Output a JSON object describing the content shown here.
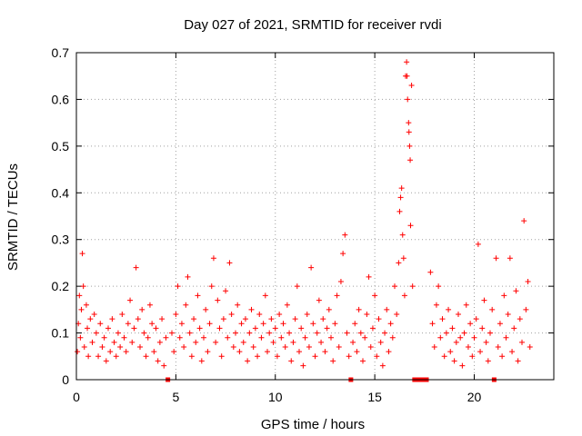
{
  "chart_data": {
    "type": "scatter",
    "title": "Day 027 of 2021, SRMTID for receiver rvdi",
    "xlabel": "GPS time / hours",
    "ylabel": "SRMTID / TECUs",
    "xlim": [
      0,
      24
    ],
    "ylim": [
      0,
      0.7
    ],
    "x_ticks": [
      0,
      5,
      10,
      15,
      20
    ],
    "y_ticks": [
      0,
      0.1,
      0.2,
      0.3,
      0.4,
      0.5,
      0.6,
      0.7
    ],
    "x_tick_labels": [
      "0",
      "5",
      "10",
      "15",
      "20"
    ],
    "y_tick_labels": [
      "0",
      "0.1",
      "0.2",
      "0.3",
      "0.4",
      "0.5",
      "0.6",
      "0.7"
    ],
    "grid": true,
    "marker": "plus",
    "marker_color": "#ff0000",
    "series": [
      {
        "name": "SRMTID",
        "points": [
          [
            0.05,
            0.06
          ],
          [
            0.1,
            0.12
          ],
          [
            0.15,
            0.18
          ],
          [
            0.2,
            0.09
          ],
          [
            0.25,
            0.15
          ],
          [
            0.3,
            0.27
          ],
          [
            0.35,
            0.2
          ],
          [
            0.4,
            0.07
          ],
          [
            0.5,
            0.16
          ],
          [
            0.55,
            0.11
          ],
          [
            0.6,
            0.05
          ],
          [
            0.7,
            0.13
          ],
          [
            0.8,
            0.08
          ],
          [
            0.9,
            0.14
          ],
          [
            1.0,
            0.1
          ],
          [
            1.1,
            0.05
          ],
          [
            1.2,
            0.12
          ],
          [
            1.3,
            0.07
          ],
          [
            1.4,
            0.09
          ],
          [
            1.5,
            0.04
          ],
          [
            1.6,
            0.11
          ],
          [
            1.7,
            0.06
          ],
          [
            1.8,
            0.13
          ],
          [
            1.9,
            0.08
          ],
          [
            2.0,
            0.05
          ],
          [
            2.1,
            0.1
          ],
          [
            2.2,
            0.07
          ],
          [
            2.3,
            0.14
          ],
          [
            2.4,
            0.09
          ],
          [
            2.5,
            0.06
          ],
          [
            2.6,
            0.12
          ],
          [
            2.7,
            0.17
          ],
          [
            2.8,
            0.08
          ],
          [
            2.9,
            0.11
          ],
          [
            3.0,
            0.24
          ],
          [
            3.1,
            0.13
          ],
          [
            3.2,
            0.07
          ],
          [
            3.3,
            0.15
          ],
          [
            3.4,
            0.1
          ],
          [
            3.5,
            0.05
          ],
          [
            3.6,
            0.09
          ],
          [
            3.7,
            0.16
          ],
          [
            3.8,
            0.12
          ],
          [
            3.9,
            0.06
          ],
          [
            4.0,
            0.11
          ],
          [
            4.1,
            0.04
          ],
          [
            4.2,
            0.08
          ],
          [
            4.3,
            0.13
          ],
          [
            4.4,
            0.03
          ],
          [
            4.5,
            0.09
          ],
          [
            4.6,
            0.0
          ],
          [
            4.8,
            0.1
          ],
          [
            4.9,
            0.06
          ],
          [
            5.0,
            0.14
          ],
          [
            5.1,
            0.2
          ],
          [
            5.2,
            0.09
          ],
          [
            5.3,
            0.12
          ],
          [
            5.4,
            0.07
          ],
          [
            5.5,
            0.16
          ],
          [
            5.6,
            0.22
          ],
          [
            5.7,
            0.1
          ],
          [
            5.8,
            0.05
          ],
          [
            5.9,
            0.13
          ],
          [
            6.0,
            0.08
          ],
          [
            6.1,
            0.18
          ],
          [
            6.2,
            0.11
          ],
          [
            6.3,
            0.04
          ],
          [
            6.4,
            0.09
          ],
          [
            6.5,
            0.15
          ],
          [
            6.6,
            0.06
          ],
          [
            6.7,
            0.12
          ],
          [
            6.8,
            0.2
          ],
          [
            6.9,
            0.26
          ],
          [
            7.0,
            0.08
          ],
          [
            7.1,
            0.17
          ],
          [
            7.2,
            0.11
          ],
          [
            7.3,
            0.05
          ],
          [
            7.4,
            0.13
          ],
          [
            7.5,
            0.19
          ],
          [
            7.6,
            0.09
          ],
          [
            7.7,
            0.25
          ],
          [
            7.8,
            0.14
          ],
          [
            7.9,
            0.07
          ],
          [
            8.0,
            0.1
          ],
          [
            8.1,
            0.16
          ],
          [
            8.2,
            0.06
          ],
          [
            8.3,
            0.12
          ],
          [
            8.4,
            0.08
          ],
          [
            8.5,
            0.13
          ],
          [
            8.6,
            0.04
          ],
          [
            8.7,
            0.1
          ],
          [
            8.8,
            0.15
          ],
          [
            8.9,
            0.07
          ],
          [
            9.0,
            0.11
          ],
          [
            9.1,
            0.05
          ],
          [
            9.2,
            0.14
          ],
          [
            9.3,
            0.09
          ],
          [
            9.4,
            0.12
          ],
          [
            9.5,
            0.18
          ],
          [
            9.6,
            0.06
          ],
          [
            9.7,
            0.1
          ],
          [
            9.8,
            0.13
          ],
          [
            9.9,
            0.08
          ],
          [
            10.0,
            0.11
          ],
          [
            10.1,
            0.05
          ],
          [
            10.2,
            0.14
          ],
          [
            10.3,
            0.09
          ],
          [
            10.4,
            0.12
          ],
          [
            10.5,
            0.07
          ],
          [
            10.6,
            0.16
          ],
          [
            10.7,
            0.1
          ],
          [
            10.8,
            0.04
          ],
          [
            10.9,
            0.08
          ],
          [
            11.0,
            0.13
          ],
          [
            11.1,
            0.2
          ],
          [
            11.2,
            0.06
          ],
          [
            11.3,
            0.11
          ],
          [
            11.4,
            0.03
          ],
          [
            11.5,
            0.09
          ],
          [
            11.6,
            0.14
          ],
          [
            11.7,
            0.07
          ],
          [
            11.8,
            0.24
          ],
          [
            11.9,
            0.12
          ],
          [
            12.0,
            0.05
          ],
          [
            12.1,
            0.1
          ],
          [
            12.2,
            0.17
          ],
          [
            12.3,
            0.08
          ],
          [
            12.4,
            0.13
          ],
          [
            12.5,
            0.06
          ],
          [
            12.6,
            0.11
          ],
          [
            12.7,
            0.15
          ],
          [
            12.8,
            0.09
          ],
          [
            12.9,
            0.04
          ],
          [
            13.0,
            0.12
          ],
          [
            13.1,
            0.18
          ],
          [
            13.2,
            0.07
          ],
          [
            13.3,
            0.21
          ],
          [
            13.4,
            0.27
          ],
          [
            13.5,
            0.31
          ],
          [
            13.6,
            0.1
          ],
          [
            13.7,
            0.05
          ],
          [
            13.8,
            0.0
          ],
          [
            13.9,
            0.08
          ],
          [
            14.0,
            0.12
          ],
          [
            14.1,
            0.06
          ],
          [
            14.2,
            0.15
          ],
          [
            14.3,
            0.1
          ],
          [
            14.4,
            0.04
          ],
          [
            14.5,
            0.09
          ],
          [
            14.6,
            0.14
          ],
          [
            14.7,
            0.22
          ],
          [
            14.8,
            0.07
          ],
          [
            14.9,
            0.11
          ],
          [
            15.0,
            0.18
          ],
          [
            15.1,
            0.05
          ],
          [
            15.2,
            0.13
          ],
          [
            15.3,
            0.08
          ],
          [
            15.4,
            0.03
          ],
          [
            15.5,
            0.1
          ],
          [
            15.6,
            0.15
          ],
          [
            15.7,
            0.06
          ],
          [
            15.8,
            0.12
          ],
          [
            15.9,
            0.09
          ],
          [
            16.0,
            0.2
          ],
          [
            16.1,
            0.14
          ],
          [
            16.2,
            0.25
          ],
          [
            16.25,
            0.36
          ],
          [
            16.3,
            0.39
          ],
          [
            16.35,
            0.41
          ],
          [
            16.4,
            0.31
          ],
          [
            16.45,
            0.26
          ],
          [
            16.5,
            0.18
          ],
          [
            16.55,
            0.65
          ],
          [
            16.6,
            0.68
          ],
          [
            16.62,
            0.65
          ],
          [
            16.65,
            0.6
          ],
          [
            16.7,
            0.55
          ],
          [
            16.72,
            0.53
          ],
          [
            16.75,
            0.5
          ],
          [
            16.78,
            0.47
          ],
          [
            16.8,
            0.33
          ],
          [
            16.85,
            0.63
          ],
          [
            16.9,
            0.2
          ],
          [
            17.0,
            0.0
          ],
          [
            17.2,
            0.0
          ],
          [
            17.4,
            0.0
          ],
          [
            17.6,
            0.0
          ],
          [
            17.8,
            0.23
          ],
          [
            17.9,
            0.12
          ],
          [
            18.0,
            0.07
          ],
          [
            18.1,
            0.16
          ],
          [
            18.2,
            0.2
          ],
          [
            18.3,
            0.09
          ],
          [
            18.4,
            0.13
          ],
          [
            18.5,
            0.05
          ],
          [
            18.6,
            0.1
          ],
          [
            18.7,
            0.15
          ],
          [
            18.8,
            0.06
          ],
          [
            18.9,
            0.11
          ],
          [
            19.0,
            0.04
          ],
          [
            19.1,
            0.08
          ],
          [
            19.2,
            0.14
          ],
          [
            19.3,
            0.09
          ],
          [
            19.4,
            0.03
          ],
          [
            19.5,
            0.1
          ],
          [
            19.6,
            0.16
          ],
          [
            19.7,
            0.07
          ],
          [
            19.8,
            0.12
          ],
          [
            19.9,
            0.05
          ],
          [
            20.0,
            0.09
          ],
          [
            20.1,
            0.13
          ],
          [
            20.2,
            0.29
          ],
          [
            20.3,
            0.06
          ],
          [
            20.4,
            0.11
          ],
          [
            20.5,
            0.17
          ],
          [
            20.6,
            0.08
          ],
          [
            20.7,
            0.04
          ],
          [
            20.8,
            0.1
          ],
          [
            20.9,
            0.15
          ],
          [
            21.0,
            0.0
          ],
          [
            21.1,
            0.26
          ],
          [
            21.2,
            0.07
          ],
          [
            21.3,
            0.12
          ],
          [
            21.4,
            0.05
          ],
          [
            21.5,
            0.18
          ],
          [
            21.6,
            0.09
          ],
          [
            21.7,
            0.14
          ],
          [
            21.8,
            0.26
          ],
          [
            21.9,
            0.06
          ],
          [
            22.0,
            0.11
          ],
          [
            22.1,
            0.19
          ],
          [
            22.2,
            0.04
          ],
          [
            22.3,
            0.13
          ],
          [
            22.4,
            0.08
          ],
          [
            22.5,
            0.34
          ],
          [
            22.6,
            0.15
          ],
          [
            22.7,
            0.21
          ],
          [
            22.8,
            0.07
          ]
        ]
      }
    ]
  }
}
